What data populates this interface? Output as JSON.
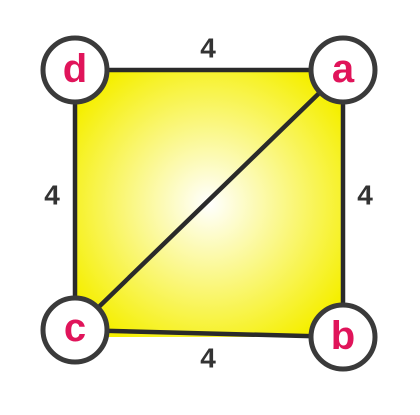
{
  "colors": {
    "fill_center": "#ffffff",
    "fill_edge": "#f5ef00",
    "node_letter": "#e0145a",
    "edge_line": "#2a2a2a",
    "weight_text": "#333333"
  },
  "nodes": [
    {
      "id": "a",
      "label": "a"
    },
    {
      "id": "b",
      "label": "b"
    },
    {
      "id": "c",
      "label": "c"
    },
    {
      "id": "d",
      "label": "d"
    }
  ],
  "edges": [
    {
      "from": "d",
      "to": "a",
      "weight": "4"
    },
    {
      "from": "a",
      "to": "b",
      "weight": "4"
    },
    {
      "from": "c",
      "to": "b",
      "weight": "4"
    },
    {
      "from": "d",
      "to": "c",
      "weight": "4"
    },
    {
      "from": "c",
      "to": "a",
      "weight": ""
    }
  ]
}
